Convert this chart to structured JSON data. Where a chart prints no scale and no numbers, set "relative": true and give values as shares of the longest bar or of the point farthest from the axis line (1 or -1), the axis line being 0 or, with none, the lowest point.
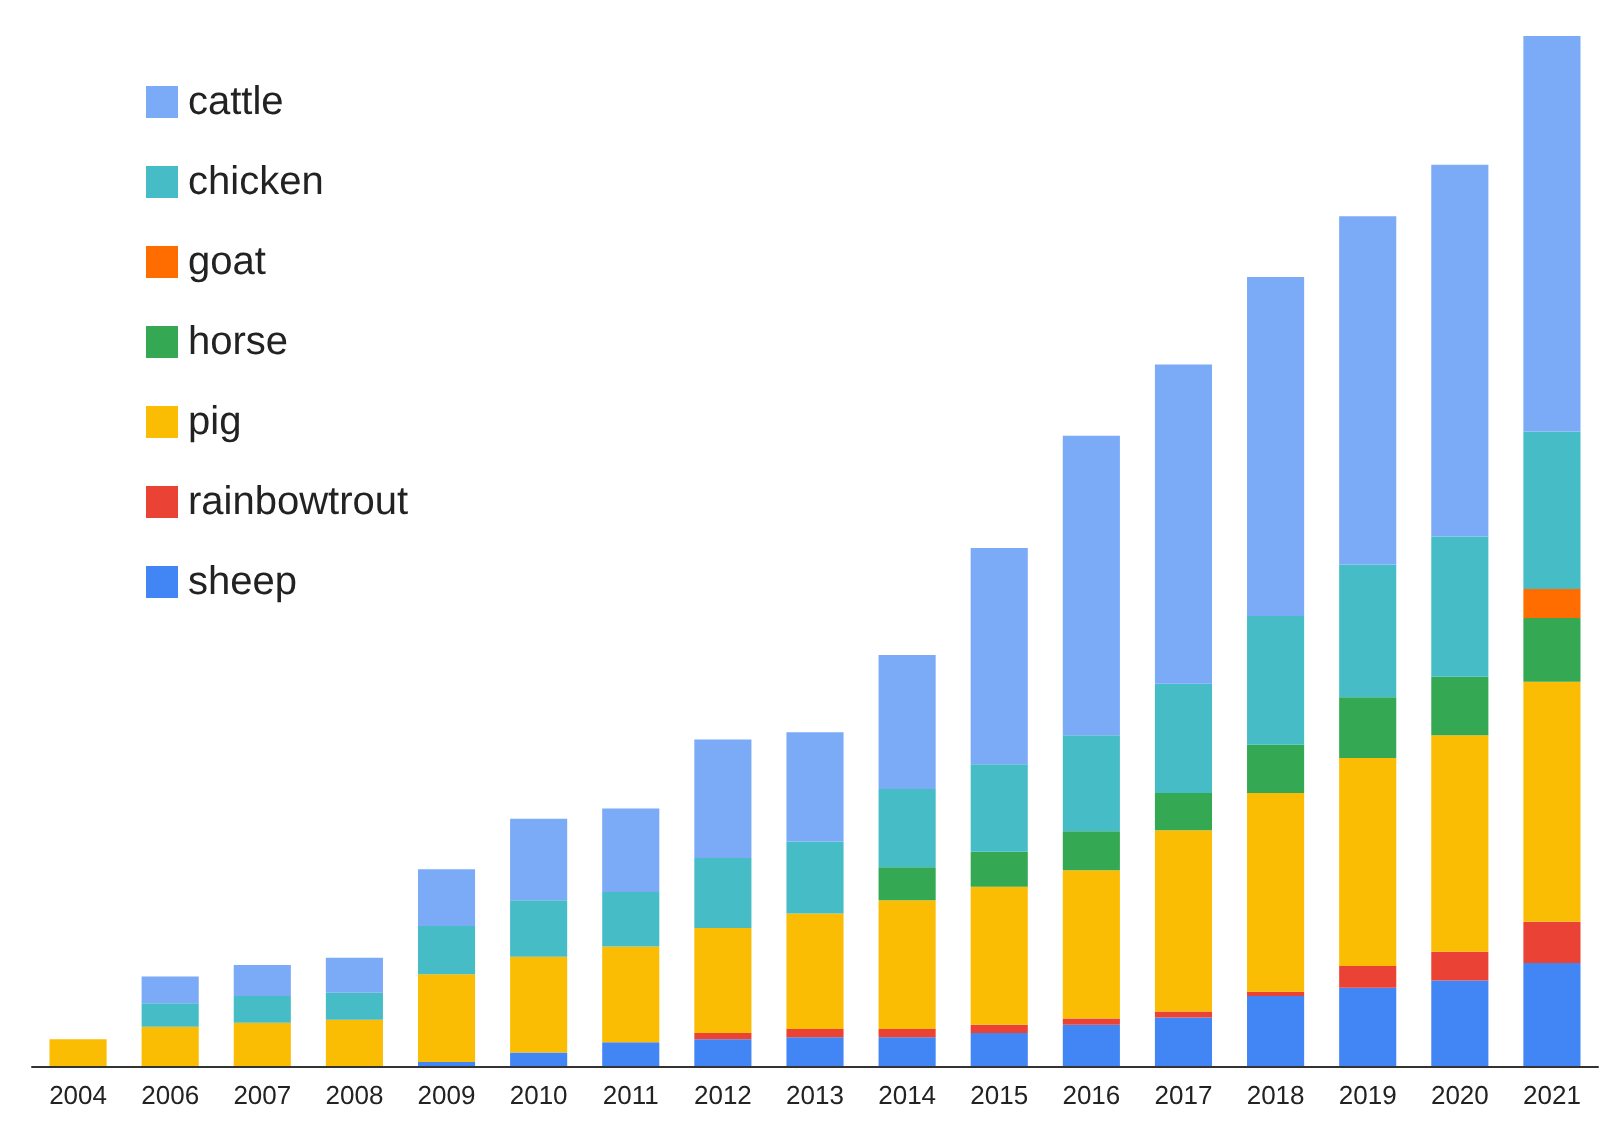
{
  "chart_data": {
    "type": "bar",
    "stacked": true,
    "relative": true,
    "legend": "top left",
    "categories": [
      "2004",
      "2006",
      "2007",
      "2008",
      "2009",
      "2010",
      "2011",
      "2012",
      "2013",
      "2014",
      "2015",
      "2016",
      "2017",
      "2018",
      "2019",
      "2020",
      "2021"
    ],
    "series": [
      {
        "name": "sheep",
        "color": "#4285f4",
        "values": [
          null,
          null,
          null,
          null,
          0.004,
          0.013,
          0.023,
          0.026,
          0.028,
          0.028,
          0.032,
          0.04,
          0.047,
          0.068,
          0.076,
          0.083,
          0.1
        ]
      },
      {
        "name": "rainbowtrout",
        "color": "#ea4335",
        "values": [
          null,
          null,
          null,
          null,
          null,
          null,
          null,
          0.006,
          0.008,
          0.008,
          0.008,
          0.006,
          0.006,
          0.004,
          0.021,
          0.028,
          0.04
        ]
      },
      {
        "name": "pig",
        "color": "#fbbc04",
        "values": [
          0.026,
          0.038,
          0.042,
          0.045,
          0.085,
          0.093,
          0.093,
          0.102,
          0.112,
          0.125,
          0.134,
          0.144,
          0.176,
          0.193,
          0.202,
          0.21,
          0.233
        ]
      },
      {
        "name": "horse",
        "color": "#34a853",
        "values": [
          null,
          null,
          null,
          null,
          null,
          null,
          null,
          null,
          null,
          0.032,
          0.034,
          0.038,
          0.036,
          0.047,
          0.059,
          0.057,
          0.062
        ]
      },
      {
        "name": "goat",
        "color": "#ff6d01",
        "values": [
          null,
          null,
          null,
          null,
          null,
          null,
          null,
          null,
          null,
          null,
          null,
          null,
          null,
          null,
          null,
          null,
          0.028
        ]
      },
      {
        "name": "chicken",
        "color": "#46bdc6",
        "values": [
          null,
          0.023,
          0.026,
          0.026,
          0.047,
          0.055,
          0.053,
          0.068,
          0.07,
          0.076,
          0.085,
          0.093,
          0.106,
          0.125,
          0.129,
          0.136,
          0.153
        ]
      },
      {
        "name": "cattle",
        "color": "#7baaf7",
        "values": [
          null,
          0.026,
          0.03,
          0.034,
          0.055,
          0.079,
          0.081,
          0.115,
          0.106,
          0.13,
          0.21,
          0.291,
          0.31,
          0.329,
          0.338,
          0.361,
          0.384
        ]
      }
    ]
  }
}
